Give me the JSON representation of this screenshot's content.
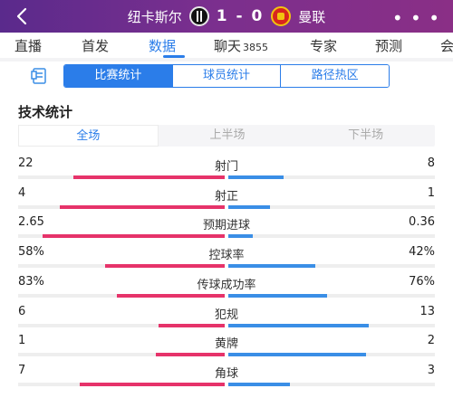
{
  "header": {
    "home_team": "纽卡斯尔",
    "away_team": "曼联",
    "score": "1 - 0",
    "more_label": "• • •",
    "colors": {
      "bg_start": "#5a2a8c",
      "bg_end": "#8a2f86"
    }
  },
  "tabs": [
    {
      "label": "直播"
    },
    {
      "label": "首发"
    },
    {
      "label": "数据",
      "active": true
    },
    {
      "label": "聊天",
      "count": "3855"
    },
    {
      "label": "专家"
    },
    {
      "label": "预测"
    },
    {
      "label": "会"
    }
  ],
  "segmented": {
    "items": [
      "比赛统计",
      "球员统计",
      "路径热区"
    ],
    "active_index": 0
  },
  "section_title": "技术统计",
  "period_tabs": {
    "items": [
      "全场",
      "上半场",
      "下半场"
    ],
    "active_index": 0
  },
  "stats": [
    {
      "label": "射门",
      "home": "22",
      "away": "8",
      "home_share": 0.733,
      "away_share": 0.267
    },
    {
      "label": "射正",
      "home": "4",
      "away": "1",
      "home_share": 0.8,
      "away_share": 0.2
    },
    {
      "label": "预期进球",
      "home": "2.65",
      "away": "0.36",
      "home_share": 0.88,
      "away_share": 0.12
    },
    {
      "label": "控球率",
      "home": "58%",
      "away": "42%",
      "home_share": 0.58,
      "away_share": 0.42
    },
    {
      "label": "传球成功率",
      "home": "83%",
      "away": "76%",
      "home_share": 0.52,
      "away_share": 0.48
    },
    {
      "label": "犯规",
      "home": "6",
      "away": "13",
      "home_share": 0.32,
      "away_share": 0.68
    },
    {
      "label": "黄牌",
      "home": "1",
      "away": "2",
      "home_share": 0.333,
      "away_share": 0.667
    },
    {
      "label": "角球",
      "home": "7",
      "away": "3",
      "home_share": 0.7,
      "away_share": 0.3
    }
  ],
  "colors": {
    "home_bar": "#e6336a",
    "away_bar": "#3a8ee6",
    "accent": "#2b7de9"
  }
}
